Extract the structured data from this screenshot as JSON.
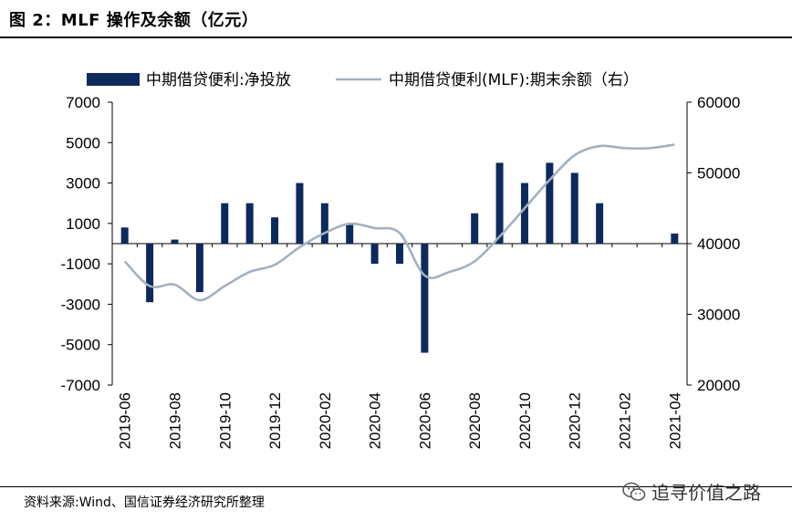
{
  "header": {
    "title": "图 2：MLF 操作及余额（亿元）"
  },
  "footer": {
    "source": "资料来源:Wind、国信证券经济研究所整理",
    "watermark": "追寻价值之路"
  },
  "colors": {
    "bar": "#0d2a5c",
    "line": "#a3b1bf",
    "axis": "#000000"
  },
  "chart_data": {
    "type": "bar+line",
    "categories": [
      "2019-06",
      "2019-07",
      "2019-08",
      "2019-09",
      "2019-10",
      "2019-11",
      "2019-12",
      "2020-01",
      "2020-02",
      "2020-03",
      "2020-04",
      "2020-05",
      "2020-06",
      "2020-07",
      "2020-08",
      "2020-09",
      "2020-10",
      "2020-11",
      "2020-12",
      "2021-01",
      "2021-02",
      "2021-03",
      "2021-04"
    ],
    "x_tick_labels": [
      "2019-06",
      "2019-08",
      "2019-10",
      "2019-12",
      "2020-02",
      "2020-04",
      "2020-06",
      "2020-08",
      "2020-10",
      "2020-12",
      "2021-02",
      "2021-04"
    ],
    "series": [
      {
        "name": "中期借贷便利:净投放",
        "type": "bar",
        "axis": "left",
        "values": [
          800,
          -2900,
          200,
          -2400,
          2000,
          2000,
          1300,
          3000,
          2000,
          1000,
          -1000,
          -1000,
          -5400,
          0,
          1500,
          4000,
          3000,
          4000,
          3500,
          2000,
          0,
          0,
          500
        ]
      },
      {
        "name": "中期借贷便利(MLF):期末余额（右）",
        "type": "line",
        "axis": "right",
        "values": [
          37500,
          34000,
          34200,
          32000,
          34000,
          36000,
          37000,
          39500,
          41500,
          42800,
          42200,
          41500,
          35500,
          36000,
          37500,
          41000,
          45000,
          49000,
          52500,
          53800,
          53500,
          53500,
          54000
        ]
      }
    ],
    "y_left": {
      "ticks": [
        7000,
        5000,
        3000,
        1000,
        -1000,
        -3000,
        -5000,
        -7000
      ],
      "ylim": [
        -7000,
        7000
      ]
    },
    "y_right": {
      "ticks": [
        60000,
        50000,
        40000,
        30000,
        20000
      ],
      "ylim": [
        20000,
        60000
      ]
    },
    "legend": {
      "position": "top"
    },
    "grid": false
  }
}
